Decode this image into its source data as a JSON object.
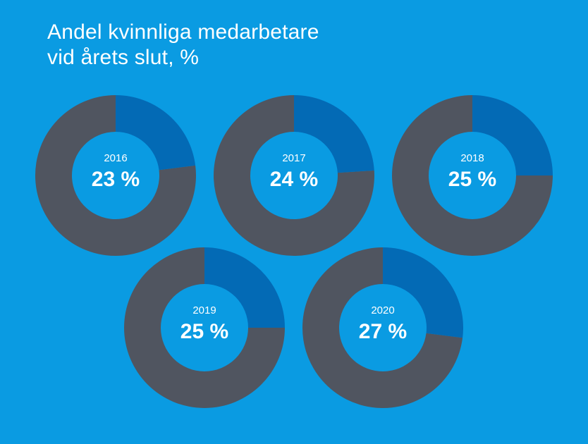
{
  "title_lines": [
    "Andel kvinnliga medarbetare",
    "vid årets slut, %"
  ],
  "colors": {
    "background": "#0a9be2",
    "share": "#036ab5",
    "remainder": "#505560",
    "text": "#ffffff"
  },
  "chart_data": {
    "type": "pie",
    "variant": "donut-small-multiples",
    "title": "Andel kvinnliga medarbetare vid årets slut, %",
    "categories": [
      "2016",
      "2017",
      "2018",
      "2019",
      "2020"
    ],
    "values": [
      23,
      24,
      25,
      25,
      27
    ],
    "value_labels": [
      "23 %",
      "24 %",
      "25 %",
      "25 %",
      "27 %"
    ],
    "unit": "%",
    "total": 100
  }
}
